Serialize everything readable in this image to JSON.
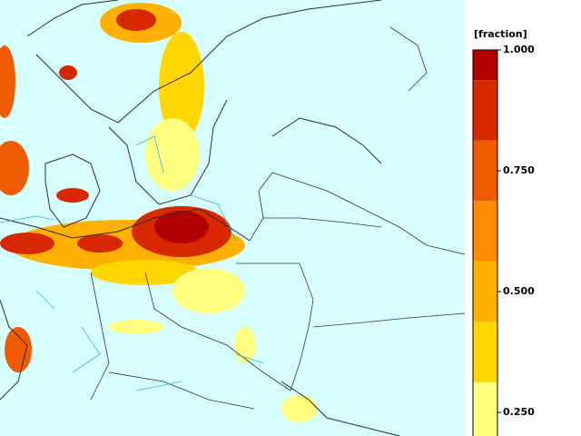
{
  "colorbar": {
    "title": "[fraction]",
    "bounds": [
      0.2,
      0.3125,
      0.4375,
      0.5625,
      0.6875,
      0.8125,
      0.9375,
      1.0
    ],
    "colors": [
      "#ffff80",
      "#ffd700",
      "#ffb000",
      "#ff8c00",
      "#f05a00",
      "#d82800",
      "#b00000"
    ],
    "ticks": [
      {
        "value": 1,
        "label": "1.000"
      },
      {
        "value": 0.75,
        "label": "0.750"
      },
      {
        "value": 0.5,
        "label": "0.500"
      },
      {
        "value": 0.25,
        "label": "0.250"
      }
    ]
  }
}
